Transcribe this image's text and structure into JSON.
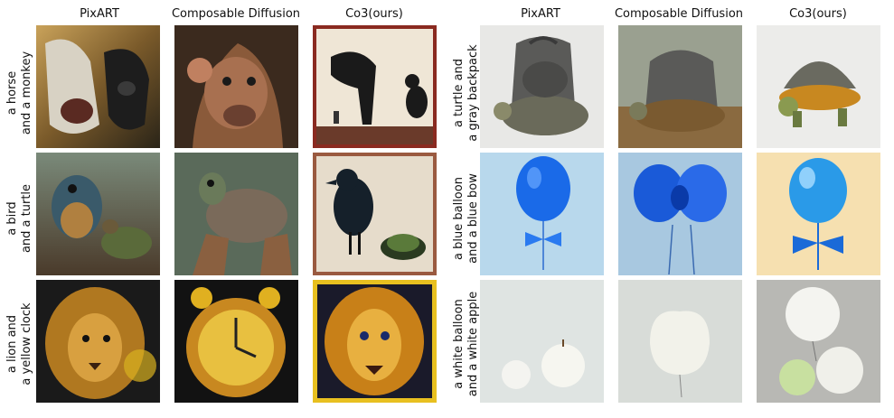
{
  "left_panel": {
    "headers": [
      "PixART",
      "Composable Diffusion",
      "Co3(ours)"
    ],
    "prompts": [
      [
        "a horse",
        "and a monkey"
      ],
      [
        "a bird",
        "and a turtle"
      ],
      [
        "a lion and",
        "a yellow clock"
      ]
    ]
  },
  "right_panel": {
    "headers": [
      "PixART",
      "Composable Diffusion",
      "Co3(ours)"
    ],
    "prompts": [
      [
        "a turtle and",
        "a gray backpack"
      ],
      [
        "a blue balloon",
        "and a blue bow"
      ],
      [
        "a white balloon",
        "and a white apple"
      ]
    ]
  }
}
